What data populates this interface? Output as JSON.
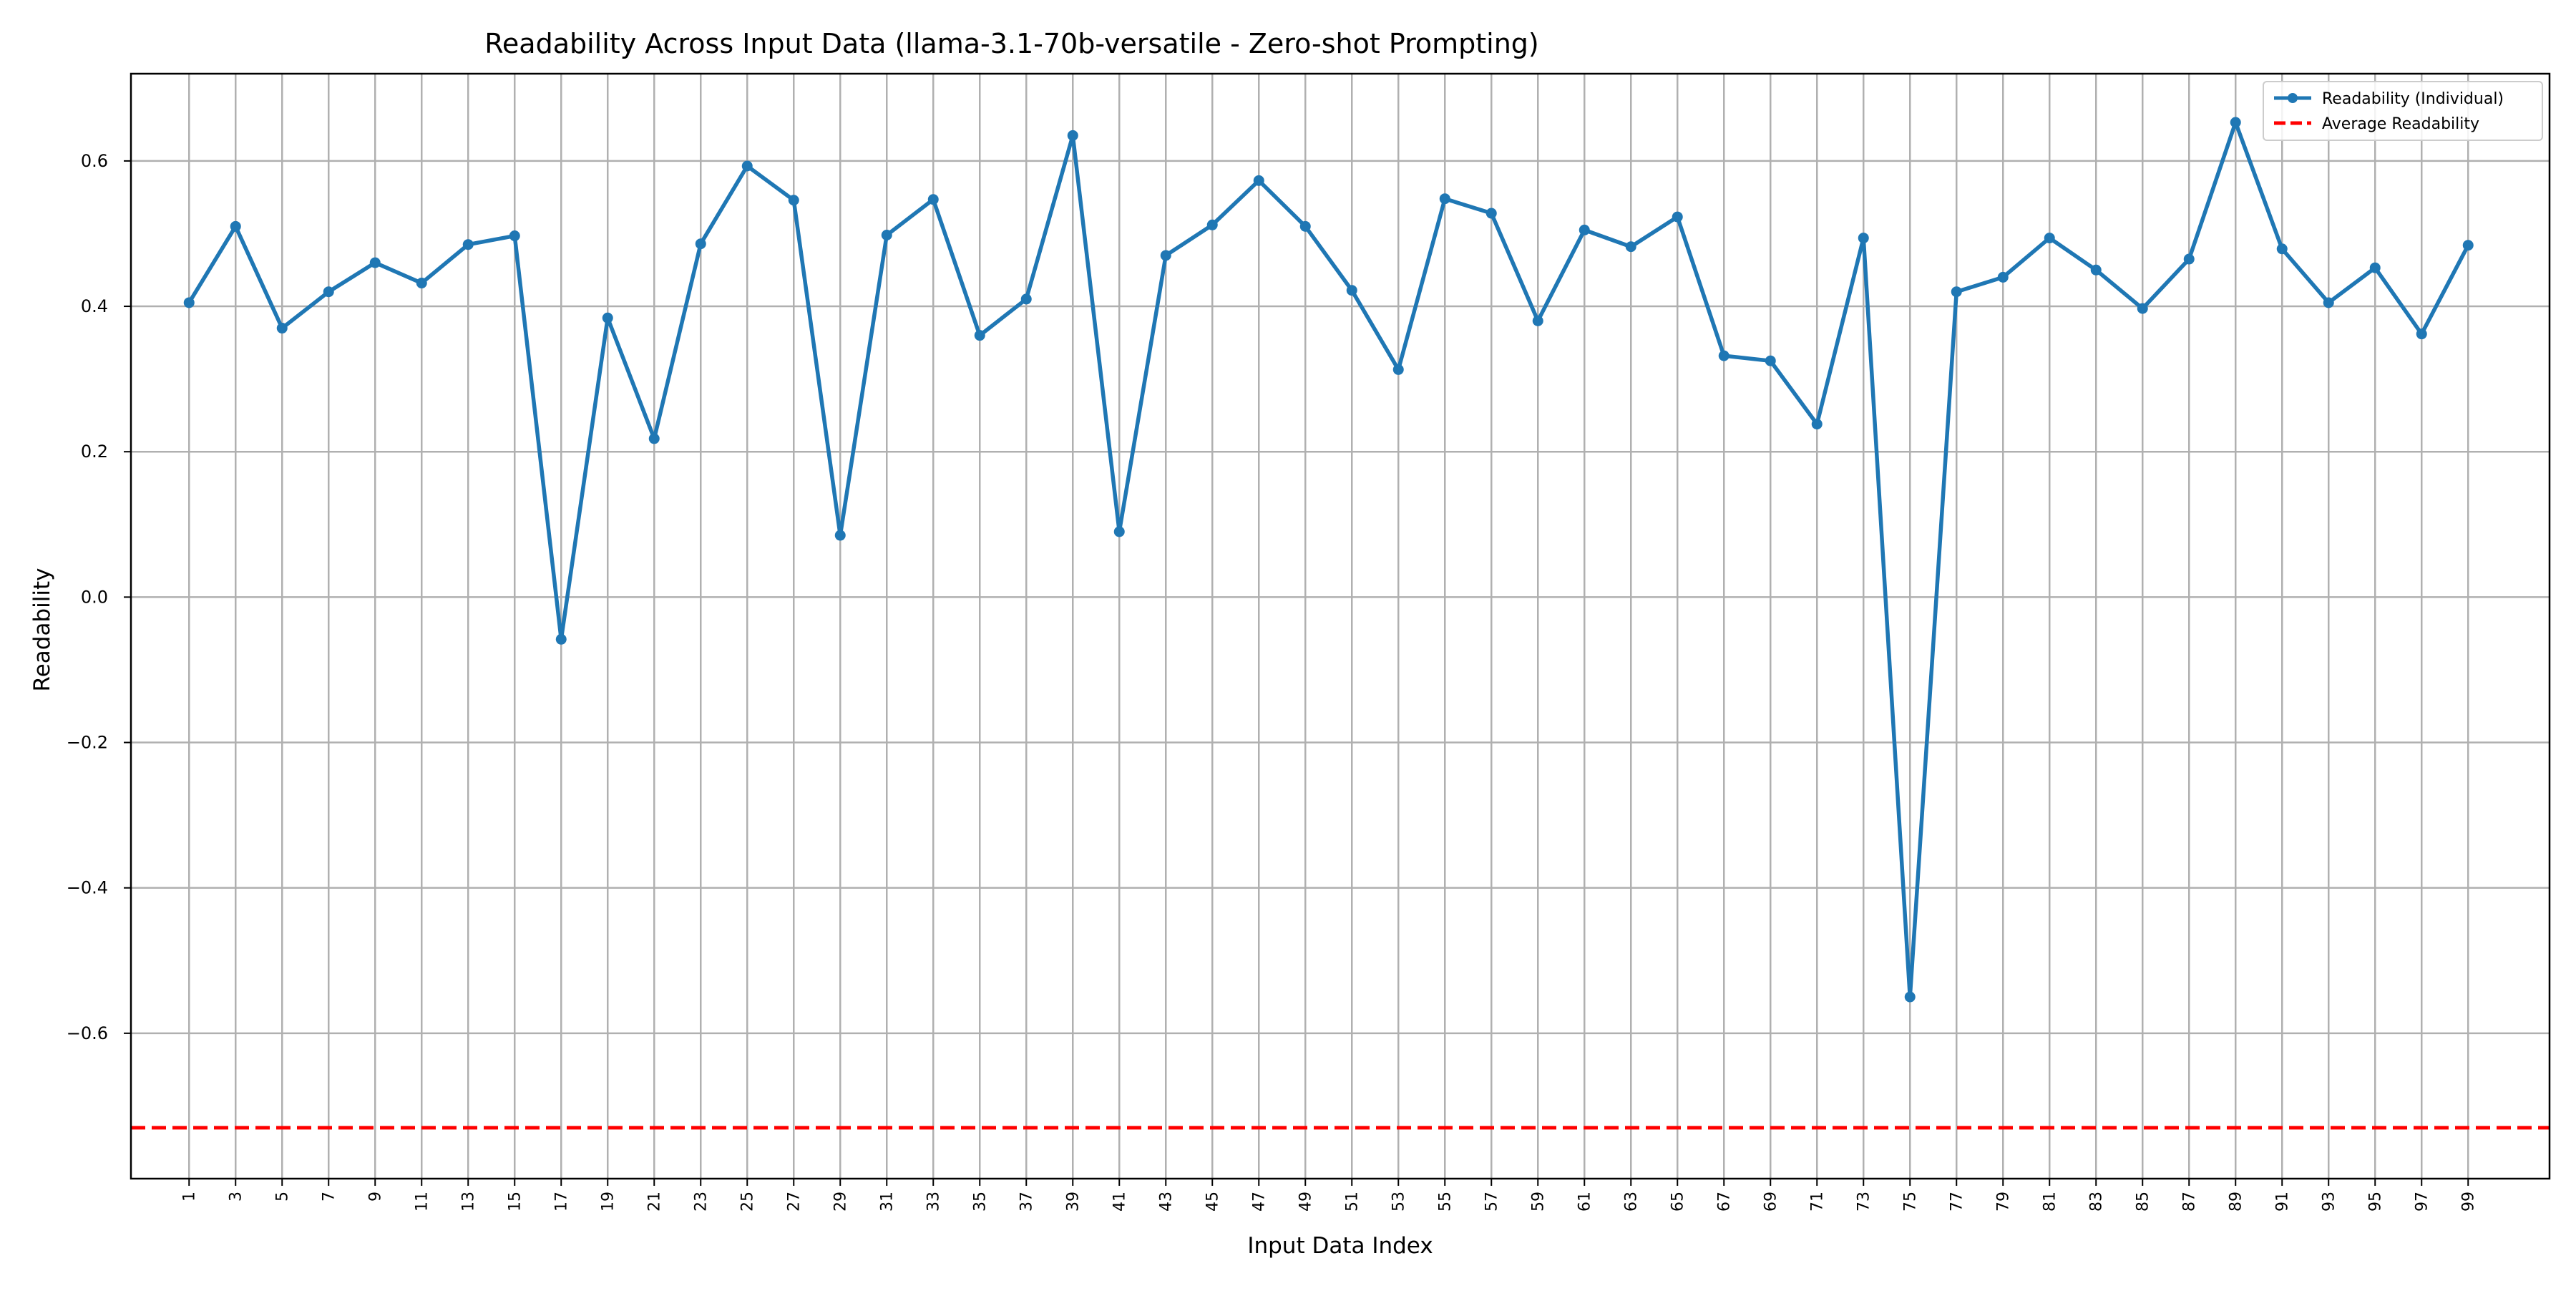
{
  "chart_data": {
    "type": "line",
    "title": "Readability Across Input Data (llama-3.1-70b-versatile - Zero-shot Prompting)",
    "xlabel": "Input Data Index",
    "ylabel": "Readability",
    "xlim": [
      -1.5,
      102.5
    ],
    "ylim": [
      -0.8,
      0.72
    ],
    "x_tick_labels": [
      "1",
      "3",
      "5",
      "7",
      "9",
      "11",
      "13",
      "15",
      "17",
      "19",
      "21",
      "23",
      "25",
      "27",
      "29",
      "31",
      "33",
      "35",
      "37",
      "39",
      "41",
      "43",
      "45",
      "47",
      "49",
      "51",
      "53",
      "55",
      "57",
      "59",
      "61",
      "63",
      "65",
      "67",
      "69",
      "71",
      "73",
      "75",
      "77",
      "79",
      "81",
      "83",
      "85",
      "87",
      "89",
      "91",
      "93",
      "95",
      "97",
      "99"
    ],
    "y_ticks": [
      -0.6,
      -0.4,
      -0.2,
      0.0,
      0.2,
      0.4,
      0.6
    ],
    "y_tick_labels": [
      "−0.6",
      "−0.4",
      "−0.2",
      "0.0",
      "0.2",
      "0.4",
      "0.6"
    ],
    "grid": true,
    "legend_position": "top-right",
    "series": [
      {
        "name": "Readability (Individual)",
        "color": "#1f77b4",
        "style": "solid-with-markers",
        "x": [
          1,
          3,
          5,
          7,
          9,
          11,
          13,
          15,
          17,
          19,
          21,
          23,
          25,
          27,
          29,
          31,
          33,
          35,
          37,
          39,
          41,
          43,
          45,
          47,
          49,
          51,
          53,
          55,
          57,
          59,
          61,
          63,
          65,
          67,
          69,
          71,
          73,
          75,
          77,
          79,
          81,
          83,
          85,
          87,
          89,
          91,
          93,
          95,
          97,
          99
        ],
        "values": [
          0.405,
          0.51,
          0.37,
          0.42,
          0.46,
          0.432,
          0.485,
          0.497,
          -0.058,
          0.384,
          0.218,
          0.486,
          0.593,
          0.546,
          0.085,
          0.498,
          0.547,
          0.36,
          0.41,
          0.635,
          0.09,
          0.47,
          0.512,
          0.573,
          0.51,
          0.422,
          0.313,
          0.548,
          0.528,
          0.38,
          0.505,
          0.482,
          0.523,
          0.332,
          0.325,
          0.238,
          0.494,
          -0.55,
          0.42,
          0.44,
          0.494,
          0.45,
          0.397,
          0.465,
          0.653,
          0.479,
          0.405,
          0.453,
          0.362,
          0.484
        ]
      },
      {
        "name": "Average Readability",
        "color": "#ff0000",
        "style": "dashed",
        "value": -0.73
      }
    ]
  }
}
